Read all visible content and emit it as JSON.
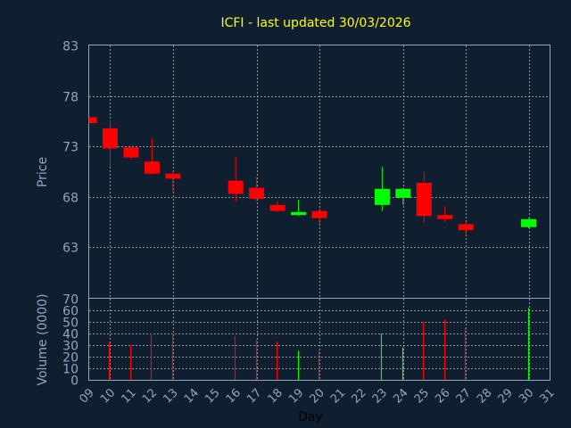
{
  "title": "ICFI - last updated 30/03/2026",
  "chart_data": [
    {
      "type": "candlestick",
      "ylabel": "Price",
      "ylim": [
        58,
        83
      ],
      "yticks": [
        "63",
        "68",
        "73",
        "78",
        "83"
      ],
      "grid": true,
      "up_color": "#00ff00",
      "down_color": "#ff0000",
      "candles": [
        {
          "day": 9,
          "open": 75.9,
          "high": 75.9,
          "low": 75.2,
          "close": 75.3
        },
        {
          "day": 10,
          "open": 74.8,
          "high": 75.6,
          "low": 71.0,
          "close": 72.8
        },
        {
          "day": 11,
          "open": 72.9,
          "high": 73.0,
          "low": 71.7,
          "close": 71.9
        },
        {
          "day": 12,
          "open": 71.5,
          "high": 73.8,
          "low": 70.2,
          "close": 70.3
        },
        {
          "day": 13,
          "open": 70.3,
          "high": 70.6,
          "low": 68.5,
          "close": 69.8
        },
        {
          "day": 16,
          "open": 69.6,
          "high": 72.0,
          "low": 67.5,
          "close": 68.3
        },
        {
          "day": 17,
          "open": 68.9,
          "high": 70.0,
          "low": 67.6,
          "close": 67.8
        },
        {
          "day": 18,
          "open": 67.2,
          "high": 67.6,
          "low": 66.5,
          "close": 66.6
        },
        {
          "day": 19,
          "open": 66.2,
          "high": 67.7,
          "low": 66.1,
          "close": 66.5
        },
        {
          "day": 20,
          "open": 66.6,
          "high": 66.9,
          "low": 65.3,
          "close": 65.9
        },
        {
          "day": 23,
          "open": 67.2,
          "high": 71.0,
          "low": 66.6,
          "close": 68.8
        },
        {
          "day": 24,
          "open": 67.9,
          "high": 68.9,
          "low": 67.2,
          "close": 68.8
        },
        {
          "day": 25,
          "open": 69.4,
          "high": 70.5,
          "low": 65.4,
          "close": 66.1
        },
        {
          "day": 26,
          "open": 66.2,
          "high": 67.1,
          "low": 65.5,
          "close": 65.8
        },
        {
          "day": 27,
          "open": 65.3,
          "high": 65.5,
          "low": 64.3,
          "close": 64.7
        },
        {
          "day": 30,
          "open": 65.0,
          "high": 65.9,
          "low": 64.9,
          "close": 65.8
        }
      ]
    },
    {
      "type": "bar",
      "ylabel": "Volume (0000)",
      "ylim": [
        0,
        70
      ],
      "yticks": [
        "0",
        "10",
        "20",
        "30",
        "40",
        "50",
        "60",
        "70"
      ],
      "xlabel": "Day",
      "xticks": [
        "09",
        "10",
        "11",
        "12",
        "13",
        "14",
        "15",
        "16",
        "17",
        "18",
        "19",
        "20",
        "21",
        "22",
        "23",
        "24",
        "25",
        "26",
        "27",
        "28",
        "29",
        "30",
        "31"
      ],
      "bars": [
        {
          "day": 10,
          "value": 33,
          "color": "#ff0000"
        },
        {
          "day": 11,
          "value": 30,
          "color": "#ff0000"
        },
        {
          "day": 12,
          "value": 40,
          "color": "#ff0000"
        },
        {
          "day": 13,
          "value": 38,
          "color": "#ff0000"
        },
        {
          "day": 16,
          "value": 38,
          "color": "#ff0000"
        },
        {
          "day": 17,
          "value": 35,
          "color": "#ff0000"
        },
        {
          "day": 18,
          "value": 33,
          "color": "#ff0000"
        },
        {
          "day": 19,
          "value": 25,
          "color": "#00ff00"
        },
        {
          "day": 20,
          "value": 25,
          "color": "#ff0000"
        },
        {
          "day": 23,
          "value": 40,
          "color": "#00ff00"
        },
        {
          "day": 24,
          "value": 28,
          "color": "#00ff00"
        },
        {
          "day": 25,
          "value": 50,
          "color": "#ff0000"
        },
        {
          "day": 26,
          "value": 52,
          "color": "#ff0000"
        },
        {
          "day": 27,
          "value": 45,
          "color": "#ff0000"
        },
        {
          "day": 30,
          "value": 62,
          "color": "#00ff00"
        }
      ]
    }
  ]
}
